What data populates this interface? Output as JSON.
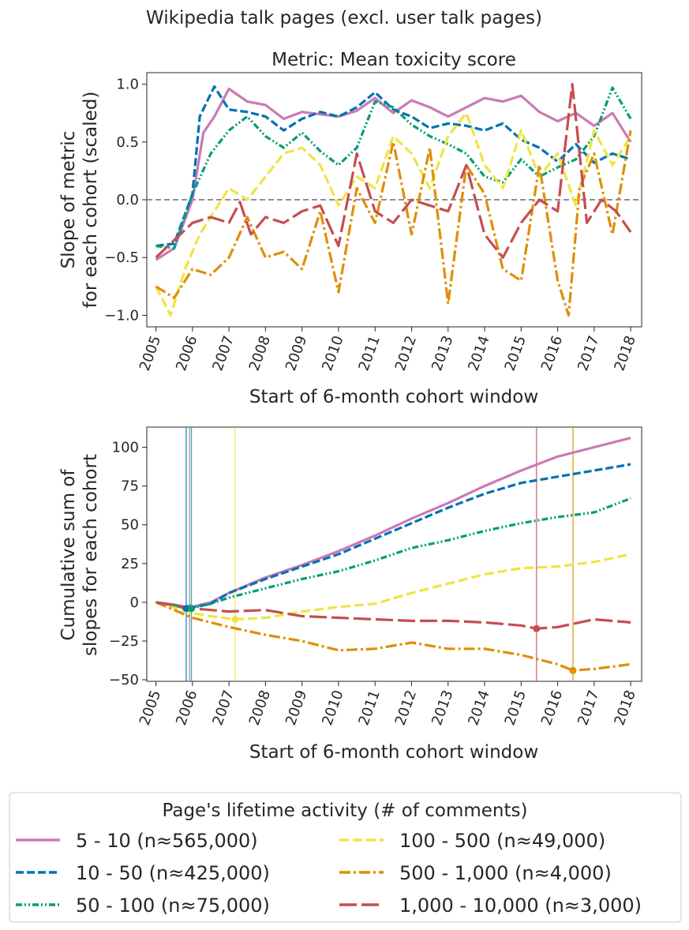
{
  "suptitle": "Wikipedia talk pages (excl. user talk pages)",
  "colors": {
    "c5_10": "#cc79b6",
    "c10_50": "#0072b2",
    "c50_100": "#009e73",
    "c100_500": "#f0e442",
    "c500_1000": "#de8f05",
    "c1000_10000": "#c44e52"
  },
  "legend": {
    "title": "Page's lifetime activity (# of comments)",
    "entries": [
      {
        "label": "5 - 10  (n≈565,000)",
        "series": "c5_10"
      },
      {
        "label": "10 - 50  (n≈425,000)",
        "series": "c10_50"
      },
      {
        "label": "50 - 100  (n≈75,000)",
        "series": "c50_100"
      },
      {
        "label": "100 - 500  (n≈49,000)",
        "series": "c100_500"
      },
      {
        "label": "500 - 1,000  (n≈4,000)",
        "series": "c500_1000"
      },
      {
        "label": "1,000 - 10,000  (n≈3,000)",
        "series": "c1000_10000"
      }
    ]
  },
  "chart_data": [
    {
      "type": "line",
      "title": "Metric: Mean toxicity score",
      "xlabel": "Start of 6-month cohort window",
      "ylabel": "Slope of metric\nfor each cohort (scaled)",
      "xlim": [
        2004.75,
        2018.3
      ],
      "ylim": [
        -1.1,
        1.1
      ],
      "xticks": [
        2005,
        2006,
        2007,
        2008,
        2009,
        2010,
        2011,
        2012,
        2013,
        2014,
        2015,
        2016,
        2017,
        2018
      ],
      "xticklabels": [
        "2005",
        "2006",
        "2007",
        "2008",
        "2009",
        "2010",
        "2011",
        "2012",
        "2013",
        "2014",
        "2015",
        "2016",
        "2017",
        "2018"
      ],
      "yticks": [
        -1.0,
        -0.5,
        0.0,
        0.5,
        1.0
      ],
      "yticklabels": [
        "−1.0",
        "−0.5",
        "0.0",
        "0.5",
        "1.0"
      ],
      "hline": 0.0,
      "series": [
        {
          "name": "5 - 10",
          "key": "c5_10",
          "x": [
            2005,
            2005.5,
            2006,
            2006.3,
            2006.6,
            2007,
            2007.5,
            2008,
            2008.5,
            2009,
            2009.5,
            2010,
            2010.5,
            2011,
            2011.5,
            2012,
            2012.5,
            2013,
            2013.5,
            2014,
            2014.5,
            2015,
            2015.5,
            2016,
            2016.5,
            2017,
            2017.5,
            2018
          ],
          "y": [
            -0.52,
            -0.42,
            0.0,
            0.58,
            0.72,
            0.96,
            0.85,
            0.82,
            0.7,
            0.76,
            0.74,
            0.72,
            0.77,
            0.88,
            0.75,
            0.86,
            0.8,
            0.72,
            0.8,
            0.88,
            0.85,
            0.9,
            0.76,
            0.68,
            0.75,
            0.64,
            0.75,
            0.5
          ]
        },
        {
          "name": "10 - 50",
          "key": "c10_50",
          "x": [
            2005,
            2005.5,
            2006,
            2006.2,
            2006.6,
            2007,
            2007.5,
            2008,
            2008.5,
            2009,
            2009.5,
            2010,
            2010.5,
            2011,
            2011.5,
            2012,
            2012.5,
            2013,
            2013.5,
            2014,
            2014.5,
            2015,
            2015.5,
            2016,
            2016.5,
            2017,
            2017.5,
            2018
          ],
          "y": [
            -0.4,
            -0.38,
            0.05,
            0.72,
            0.98,
            0.78,
            0.76,
            0.72,
            0.6,
            0.7,
            0.76,
            0.72,
            0.8,
            0.93,
            0.78,
            0.72,
            0.62,
            0.66,
            0.64,
            0.6,
            0.66,
            0.52,
            0.45,
            0.33,
            0.48,
            0.32,
            0.4,
            0.35
          ]
        },
        {
          "name": "50 - 100",
          "key": "c50_100",
          "x": [
            2005,
            2005.5,
            2006,
            2006.5,
            2007,
            2007.5,
            2008,
            2008.5,
            2009,
            2009.5,
            2010,
            2010.5,
            2011,
            2011.5,
            2012,
            2012.5,
            2013,
            2013.5,
            2014,
            2014.5,
            2015,
            2015.5,
            2016,
            2016.5,
            2017,
            2017.5,
            2018
          ],
          "y": [
            -0.4,
            -0.42,
            0.05,
            0.4,
            0.6,
            0.72,
            0.55,
            0.45,
            0.58,
            0.42,
            0.3,
            0.45,
            0.85,
            0.8,
            0.65,
            0.55,
            0.48,
            0.4,
            0.2,
            0.15,
            0.35,
            0.2,
            0.28,
            0.35,
            0.55,
            0.97,
            0.7
          ]
        },
        {
          "name": "100 - 500",
          "key": "c100_500",
          "x": [
            2005,
            2005.4,
            2005.8,
            2006.2,
            2006.6,
            2007,
            2007.5,
            2008,
            2008.5,
            2009,
            2009.5,
            2010,
            2010.5,
            2011,
            2011.5,
            2012,
            2012.5,
            2013,
            2013.5,
            2014,
            2014.5,
            2015,
            2015.5,
            2016,
            2016.5,
            2017,
            2017.5,
            2018
          ],
          "y": [
            -0.75,
            -1.0,
            -0.6,
            -0.3,
            -0.1,
            0.1,
            0.0,
            0.2,
            0.4,
            0.45,
            0.3,
            -0.05,
            0.2,
            0.1,
            0.55,
            0.4,
            0.1,
            0.55,
            0.75,
            0.3,
            0.1,
            0.6,
            0.2,
            0.4,
            -0.05,
            0.6,
            0.3,
            0.55
          ]
        },
        {
          "name": "500 - 1,000",
          "key": "c500_1000",
          "x": [
            2005,
            2005.5,
            2006,
            2006.5,
            2007,
            2007.5,
            2008,
            2008.5,
            2009,
            2009.5,
            2010,
            2010.5,
            2011,
            2011.5,
            2012,
            2012.5,
            2013,
            2013.5,
            2014,
            2014.5,
            2015,
            2015.5,
            2016,
            2016.3,
            2016.6,
            2017,
            2017.5,
            2018
          ],
          "y": [
            -0.75,
            -0.85,
            -0.6,
            -0.65,
            -0.5,
            -0.15,
            -0.5,
            -0.45,
            -0.6,
            -0.1,
            -0.8,
            0.1,
            -0.2,
            0.5,
            -0.3,
            0.45,
            -0.9,
            0.3,
            0.05,
            -0.6,
            -0.7,
            0.3,
            -0.7,
            -1.0,
            0.1,
            0.4,
            -0.3,
            0.6
          ]
        },
        {
          "name": "1,000 - 10,000",
          "key": "c1000_10000",
          "x": [
            2005,
            2005.5,
            2006,
            2006.5,
            2007,
            2007.3,
            2007.6,
            2008,
            2008.5,
            2009,
            2009.5,
            2010,
            2010.5,
            2011,
            2011.5,
            2012,
            2012.5,
            2013,
            2013.5,
            2014,
            2014.5,
            2015,
            2015.5,
            2016,
            2016.4,
            2016.8,
            2017.2,
            2017.6,
            2018
          ],
          "y": [
            -0.5,
            -0.35,
            -0.2,
            -0.15,
            -0.2,
            -0.02,
            -0.3,
            -0.15,
            -0.2,
            -0.1,
            -0.05,
            -0.4,
            0.4,
            -0.1,
            -0.2,
            0.0,
            -0.05,
            -0.1,
            0.3,
            -0.3,
            -0.5,
            -0.2,
            0.0,
            -0.1,
            1.0,
            -0.2,
            0.0,
            -0.1,
            -0.28
          ]
        }
      ]
    },
    {
      "type": "line",
      "title": "",
      "xlabel": "Start of 6-month cohort window",
      "ylabel": "Cumulative sum of\nslopes for each cohort",
      "xlim": [
        2004.75,
        2018.3
      ],
      "ylim": [
        -51,
        113
      ],
      "xticks": [
        2005,
        2006,
        2007,
        2008,
        2009,
        2010,
        2011,
        2012,
        2013,
        2014,
        2015,
        2016,
        2017,
        2018
      ],
      "xticklabels": [
        "2005",
        "2006",
        "2007",
        "2008",
        "2009",
        "2010",
        "2011",
        "2012",
        "2013",
        "2014",
        "2015",
        "2016",
        "2017",
        "2018"
      ],
      "yticks": [
        -50,
        -25,
        0,
        25,
        50,
        75,
        100
      ],
      "yticklabels": [
        "−50",
        "−25",
        "0",
        "25",
        "50",
        "75",
        "100"
      ],
      "vlines": [
        {
          "x": 2005.83,
          "key": "c10_50"
        },
        {
          "x": 2005.92,
          "key": "c5_10"
        },
        {
          "x": 2005.97,
          "key": "c50_100"
        },
        {
          "x": 2007.17,
          "key": "c100_500"
        },
        {
          "x": 2015.42,
          "key": "c1000_10000"
        },
        {
          "x": 2016.42,
          "key": "c500_1000"
        }
      ],
      "minima": [
        {
          "x": 2005.92,
          "y": -3.5,
          "key": "c5_10"
        },
        {
          "x": 2005.83,
          "y": -4,
          "key": "c10_50"
        },
        {
          "x": 2005.97,
          "y": -4,
          "key": "c50_100"
        },
        {
          "x": 2007.17,
          "y": -11,
          "key": "c100_500"
        },
        {
          "x": 2015.42,
          "y": -17,
          "key": "c1000_10000"
        },
        {
          "x": 2016.42,
          "y": -44,
          "key": "c500_1000"
        }
      ],
      "series": [
        {
          "name": "5 - 10",
          "key": "c5_10",
          "x": [
            2005,
            2005.5,
            2005.92,
            2006.5,
            2007,
            2008,
            2009,
            2010,
            2011,
            2012,
            2013,
            2014,
            2015,
            2016,
            2017,
            2018
          ],
          "y": [
            0,
            -1.5,
            -3.5,
            0,
            6,
            16,
            24,
            33,
            43,
            54,
            64,
            75,
            85,
            94,
            100,
            106
          ]
        },
        {
          "name": "10 - 50",
          "key": "c10_50",
          "x": [
            2005,
            2005.5,
            2005.83,
            2006.5,
            2007,
            2008,
            2009,
            2010,
            2011,
            2012,
            2013,
            2014,
            2015,
            2016,
            2017,
            2018
          ],
          "y": [
            0,
            -2,
            -4,
            -1,
            6,
            15,
            23,
            31,
            41,
            51,
            61,
            70,
            77,
            81,
            85,
            89
          ]
        },
        {
          "name": "50 - 100",
          "key": "c50_100",
          "x": [
            2005,
            2005.5,
            2005.97,
            2006.5,
            2007,
            2008,
            2009,
            2010,
            2011,
            2012,
            2013,
            2014,
            2015,
            2016,
            2017,
            2018
          ],
          "y": [
            0,
            -2,
            -4,
            -1,
            3,
            9,
            15,
            20,
            27,
            35,
            40,
            46,
            51,
            55,
            58,
            67
          ]
        },
        {
          "name": "100 - 500",
          "key": "c100_500",
          "x": [
            2005,
            2006,
            2006.5,
            2007.17,
            2008,
            2009,
            2010,
            2011,
            2012,
            2013,
            2014,
            2015,
            2016,
            2017,
            2018
          ],
          "y": [
            0,
            -7,
            -9,
            -11,
            -10,
            -6,
            -3,
            -1,
            6,
            12,
            18,
            22,
            23,
            26,
            31
          ]
        },
        {
          "name": "500 - 1,000",
          "key": "c500_1000",
          "x": [
            2005,
            2005.5,
            2006,
            2007,
            2008,
            2009,
            2010,
            2011,
            2012,
            2013,
            2014,
            2015,
            2016,
            2016.42,
            2017,
            2018
          ],
          "y": [
            0,
            -5,
            -10,
            -16,
            -21,
            -25,
            -31,
            -30,
            -26,
            -30,
            -30,
            -34,
            -40,
            -44,
            -43,
            -40
          ]
        },
        {
          "name": "1,000 - 10,000",
          "key": "c1000_10000",
          "x": [
            2005,
            2006,
            2007,
            2008,
            2009,
            2010,
            2011,
            2012,
            2013,
            2014,
            2015,
            2015.42,
            2016,
            2017,
            2018
          ],
          "y": [
            0,
            -4,
            -6,
            -5,
            -9,
            -10,
            -11,
            -12,
            -12,
            -13,
            -15,
            -17,
            -16,
            -11,
            -13
          ]
        }
      ]
    }
  ]
}
